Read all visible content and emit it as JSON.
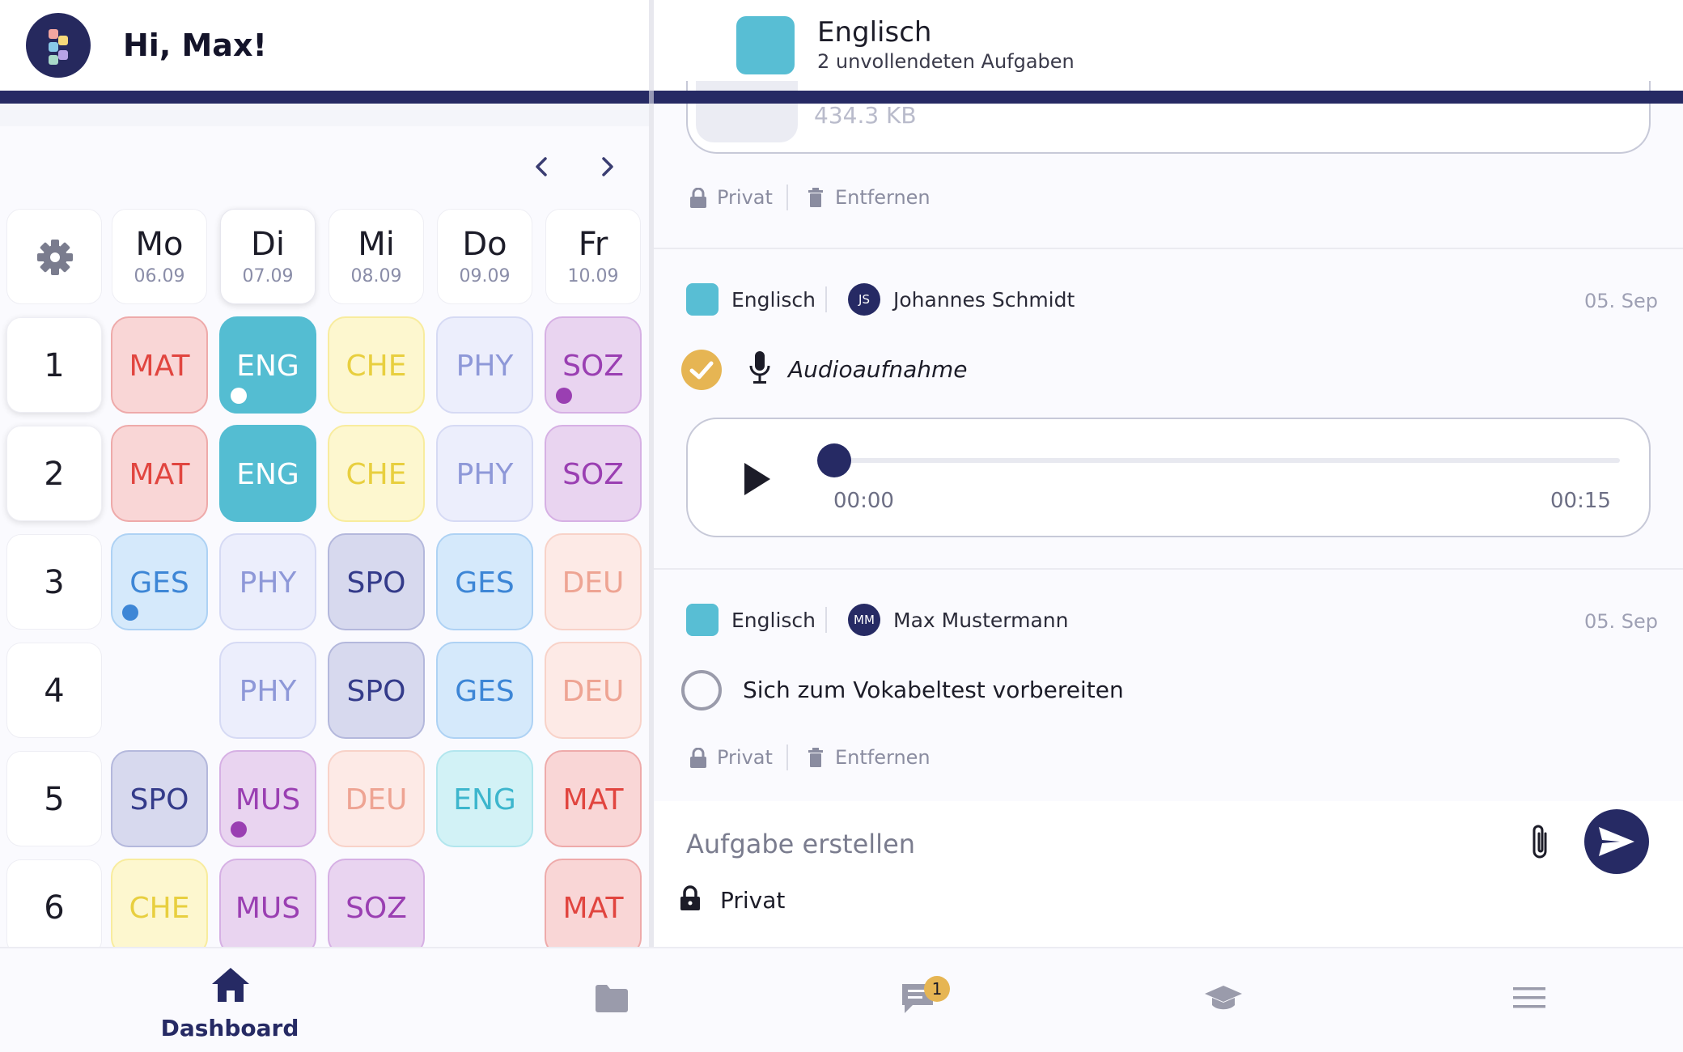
{
  "header": {
    "greeting": "Hi, Max!"
  },
  "timetable": {
    "days": [
      {
        "name": "Mo",
        "date": "06.09"
      },
      {
        "name": "Di",
        "date": "07.09"
      },
      {
        "name": "Mi",
        "date": "08.09"
      },
      {
        "name": "Do",
        "date": "09.09"
      },
      {
        "name": "Fr",
        "date": "10.09"
      }
    ],
    "periods": [
      "1",
      "2",
      "3",
      "4",
      "5",
      "6"
    ],
    "lessons": [
      [
        "MAT",
        "ENG",
        "CHE",
        "PHY",
        "SOZ"
      ],
      [
        "MAT",
        "ENG",
        "CHE",
        "PHY",
        "SOZ"
      ],
      [
        "GES",
        "PHY",
        "SPO",
        "GES",
        "DEU"
      ],
      [
        "",
        "PHY",
        "SPO",
        "GES",
        "DEU"
      ],
      [
        "SPO",
        "MUS",
        "DEU",
        "ENG",
        "MAT"
      ],
      [
        "CHE",
        "MUS",
        "SOZ",
        "",
        "MAT"
      ]
    ],
    "subject_colors": {
      "MAT": {
        "bg": "#f9d6d6",
        "fg": "#e1453f",
        "border": "#eeaaaa"
      },
      "ENG": {
        "bg": "#54bdd2",
        "fg": "#ffffff",
        "border": "#54bdd2"
      },
      "ENG_light": {
        "bg": "#d2f2f6",
        "fg": "#3db6cd",
        "border": "#b2e6ee"
      },
      "CHE": {
        "bg": "#fdf7cf",
        "fg": "#e8cf3f",
        "border": "#f8ec9e"
      },
      "PHY": {
        "bg": "#eceefc",
        "fg": "#8e98d8",
        "border": "#d6daf4"
      },
      "SOZ": {
        "bg": "#e9d4f0",
        "fg": "#9a3fb2",
        "border": "#d6b0e4"
      },
      "GES": {
        "bg": "#d5e9fb",
        "fg": "#3d86d6",
        "border": "#aed2f4"
      },
      "SPO": {
        "bg": "#d7d9ee",
        "fg": "#343b8a",
        "border": "#b4b8dc"
      },
      "DEU": {
        "bg": "#fdeae6",
        "fg": "#eea493",
        "border": "#f8d2c8"
      },
      "MUS": {
        "bg": "#e9d4f0",
        "fg": "#9a3fb2",
        "border": "#d6b0e4"
      }
    }
  },
  "chat": {
    "subject": "Englisch",
    "subtitle": "2 unvollendeten Aufgaben",
    "file_size": "434.3 KB",
    "private_label": "Privat",
    "remove_label": "Entfernen",
    "messages": [
      {
        "subject": "Englisch",
        "author_initials": "JS",
        "author": "Johannes Schmidt",
        "date": "05. Sep",
        "title": "Audioaufnahme",
        "done": true
      },
      {
        "subject": "Englisch",
        "author_initials": "MM",
        "author": "Max Mustermann",
        "date": "05. Sep",
        "title": "Sich zum Vokabeltest vorbereiten",
        "done": false
      }
    ],
    "audio": {
      "current": "00:00",
      "duration": "00:15",
      "progress": 0
    },
    "compose_placeholder": "Aufgabe erstellen",
    "compose_private": "Privat"
  },
  "nav": {
    "items": [
      {
        "icon": "home-icon",
        "label": "Dashboard",
        "active": true
      },
      {
        "icon": "folder-icon",
        "label": ""
      },
      {
        "icon": "chat-icon",
        "label": "",
        "badge": "1"
      },
      {
        "icon": "graduation-cap-icon",
        "label": ""
      },
      {
        "icon": "menu-icon",
        "label": ""
      }
    ]
  }
}
